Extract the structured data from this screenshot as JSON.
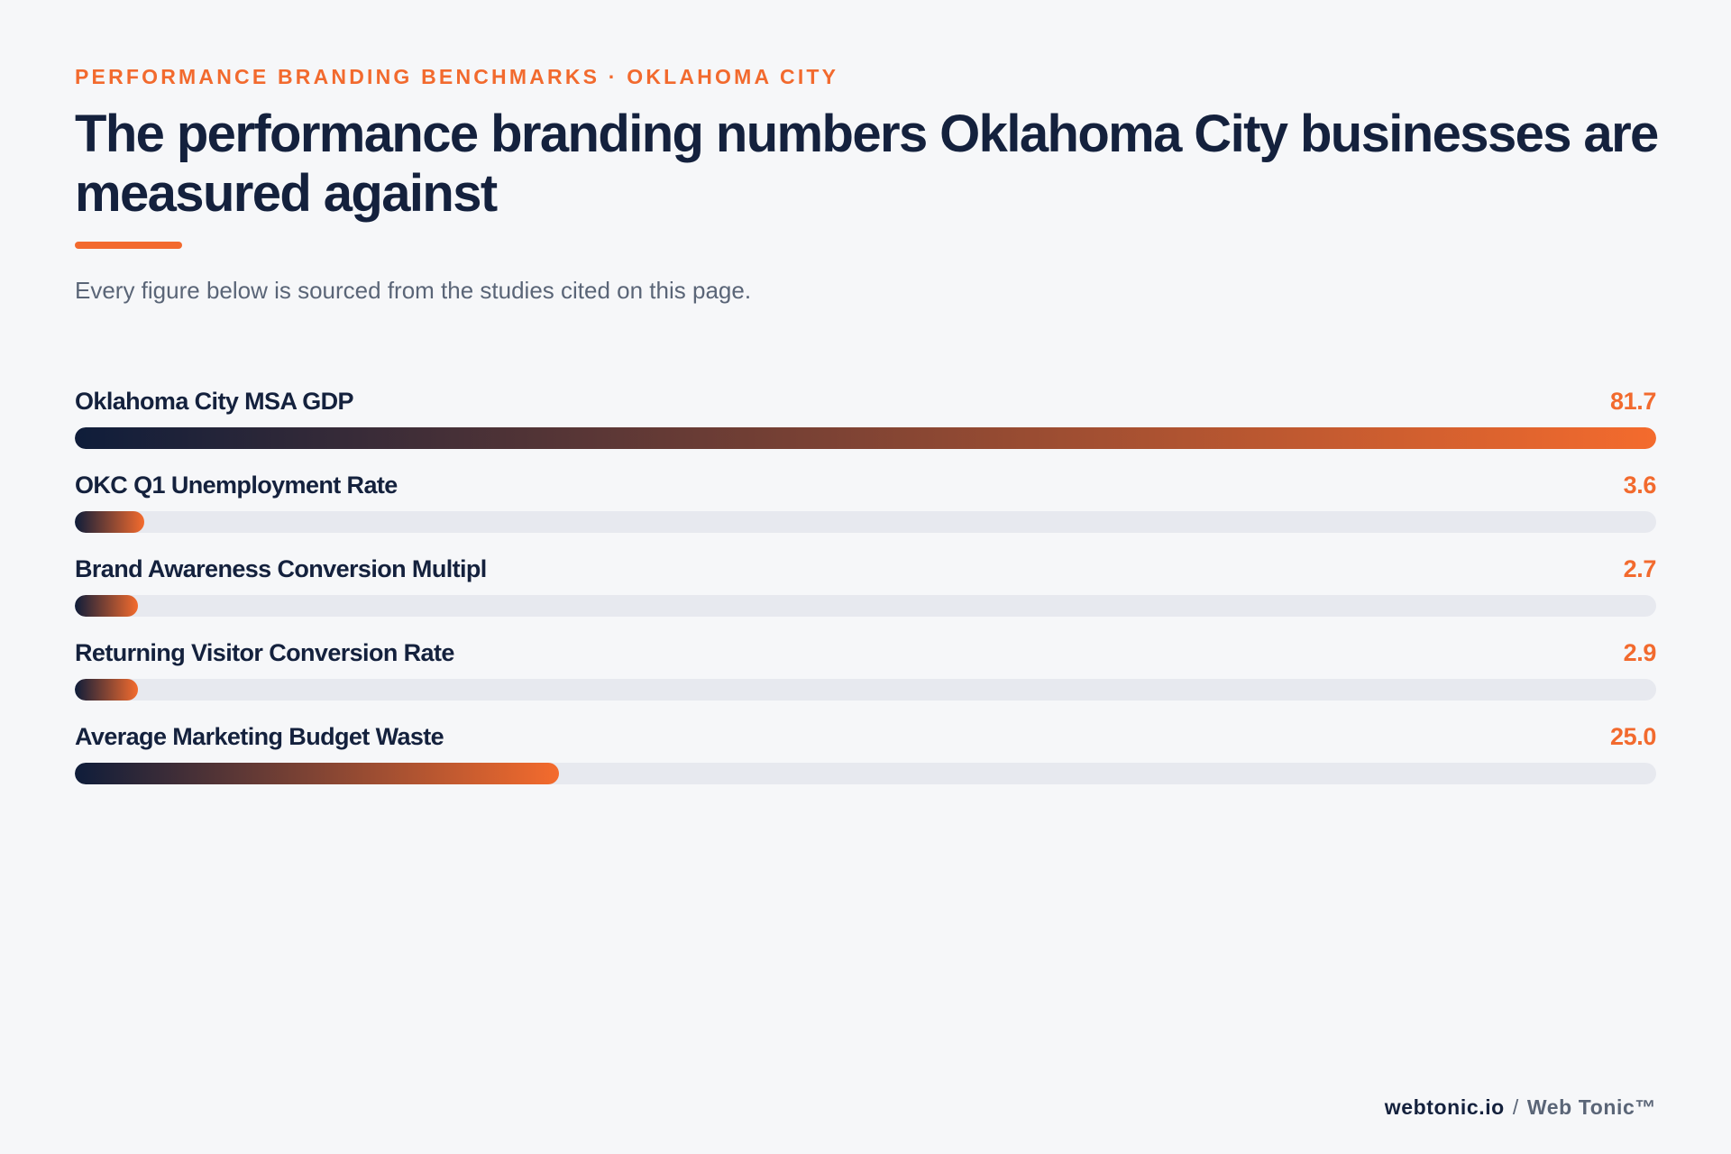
{
  "header": {
    "eyebrow": "PERFORMANCE BRANDING BENCHMARKS · OKLAHOMA CITY",
    "title": "The performance branding numbers Oklahoma City businesses are measured against",
    "subtitle": "Every figure below is sourced from the studies cited on this page."
  },
  "colors": {
    "accent": "#f26a2e",
    "navy": "#14213d",
    "track": "#e7e9ef",
    "background": "#f6f7f9"
  },
  "chart_data": {
    "type": "bar",
    "orientation": "horizontal",
    "categories": [
      "Oklahoma City MSA GDP",
      "OKC Q1 Unemployment Rate",
      "Brand Awareness Conversion Multipl",
      "Returning Visitor Conversion Rate",
      "Average Marketing Budget Waste"
    ],
    "values": [
      81.7,
      3.6,
      2.7,
      2.9,
      25.0
    ],
    "value_labels": [
      "81.7",
      "3.6",
      "2.7",
      "2.9",
      "25.0"
    ],
    "xlim": [
      0,
      81.7
    ],
    "grid": false,
    "legend": "none"
  },
  "footer": {
    "site": "webtonic.io",
    "separator": "/",
    "brand": "Web Tonic™"
  }
}
